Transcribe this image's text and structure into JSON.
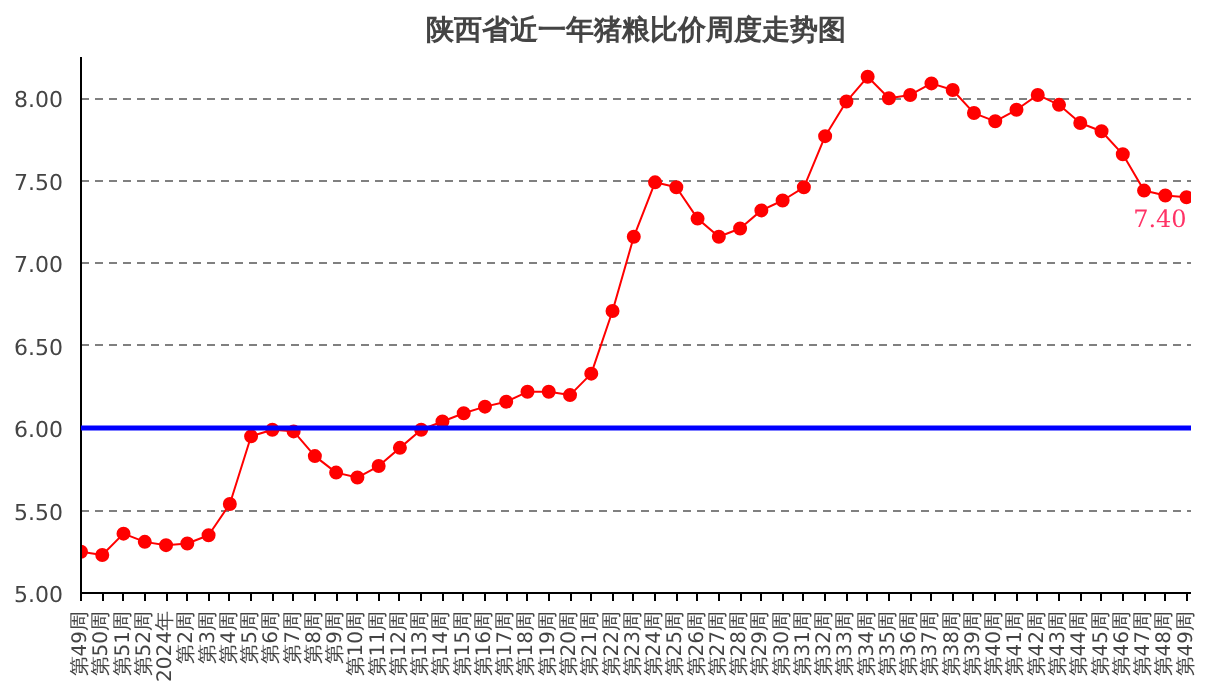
{
  "chart_data": {
    "type": "line",
    "title": "陕西省近一年猪粮比价周度走势图",
    "categories": [
      "第49周",
      "第50周",
      "第51周",
      "第52周",
      "2024年",
      "第2周",
      "第3周",
      "第4周",
      "第5周",
      "第6周",
      "第7周",
      "第8周",
      "第9周",
      "第10周",
      "第11周",
      "第12周",
      "第13周",
      "第14周",
      "第15周",
      "第16周",
      "第17周",
      "第18周",
      "第19周",
      "第20周",
      "第21周",
      "第22周",
      "第23周",
      "第24周",
      "第25周",
      "第26周",
      "第27周",
      "第28周",
      "第29周",
      "第30周",
      "第31周",
      "第32周",
      "第33周",
      "第34周",
      "第35周",
      "第36周",
      "第37周",
      "第38周",
      "第39周",
      "第40周",
      "第41周",
      "第42周",
      "第43周",
      "第44周",
      "第45周",
      "第46周",
      "第47周",
      "第48周",
      "第49周"
    ],
    "series": [
      {
        "color": "#ff0000",
        "values": [
          5.25,
          5.23,
          5.36,
          5.31,
          5.29,
          5.3,
          5.35,
          5.54,
          5.95,
          5.99,
          5.98,
          5.83,
          5.73,
          5.7,
          5.77,
          5.88,
          5.99,
          6.04,
          6.09,
          6.13,
          6.16,
          6.22,
          6.22,
          6.2,
          6.33,
          6.71,
          7.16,
          7.49,
          7.46,
          7.27,
          7.16,
          7.21,
          7.32,
          7.38,
          7.46,
          7.77,
          7.98,
          8.13,
          8.0,
          8.02,
          8.09,
          8.05,
          7.91,
          7.86,
          7.93,
          8.02,
          7.96,
          7.85,
          7.8,
          7.66,
          7.44,
          7.41,
          7.4
        ],
        "value_labels": [
          null,
          null,
          null,
          null,
          null,
          null,
          null,
          null,
          null,
          null,
          null,
          null,
          null,
          null,
          null,
          null,
          null,
          null,
          null,
          null,
          null,
          null,
          null,
          null,
          null,
          null,
          null,
          null,
          null,
          null,
          null,
          null,
          null,
          null,
          null,
          null,
          null,
          null,
          null,
          null,
          null,
          null,
          null,
          null,
          null,
          null,
          null,
          null,
          null,
          null,
          null,
          null,
          "7.40"
        ]
      }
    ],
    "ylim": [
      5,
      8.25
    ],
    "yticks": [
      {
        "value": 5,
        "label": "5.00"
      },
      {
        "value": 5.5,
        "label": "5.50"
      },
      {
        "value": 6,
        "label": "6.00"
      },
      {
        "value": 6.5,
        "label": "6.50"
      },
      {
        "value": 7,
        "label": "7.00"
      },
      {
        "value": 7.5,
        "label": "7.50"
      },
      {
        "value": 8,
        "label": "8.00"
      }
    ],
    "ref_lines": [
      {
        "axis": "y",
        "value": 6,
        "color": "#0000ff",
        "line_style": "solid"
      }
    ],
    "grid": "y",
    "marker": "circle",
    "line_style": "solid"
  }
}
